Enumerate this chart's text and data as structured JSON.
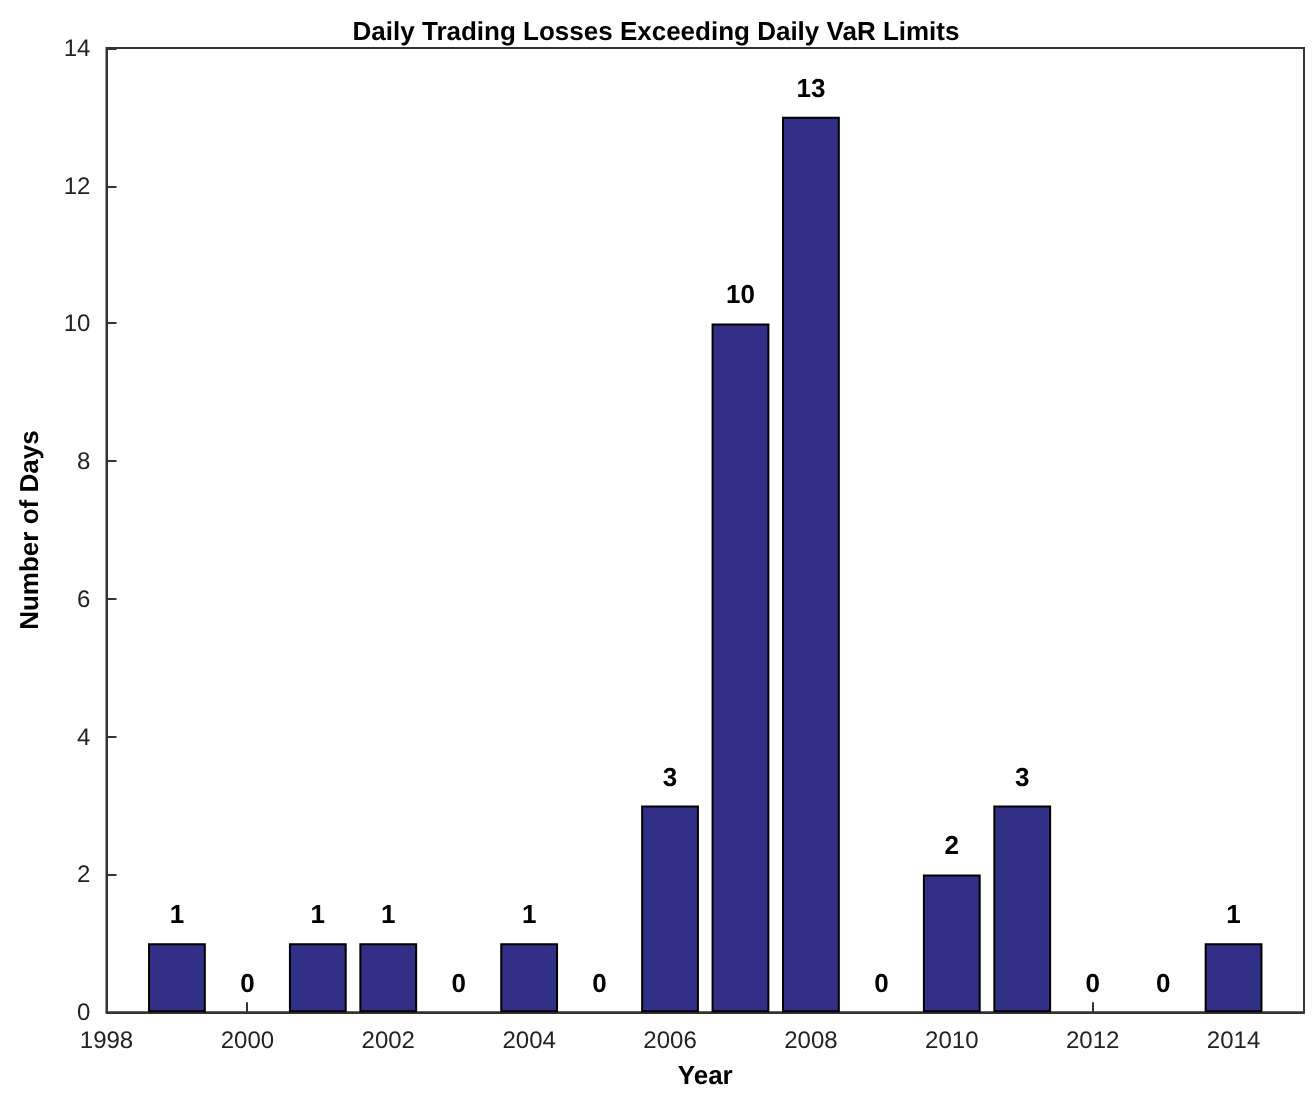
{
  "chart_data": {
    "type": "bar",
    "title": "Daily Trading Losses Exceeding Daily VaR Limits",
    "xlabel": "Year",
    "ylabel": "Number of Days",
    "x": [
      1999,
      2000,
      2001,
      2002,
      2003,
      2004,
      2005,
      2006,
      2007,
      2008,
      2009,
      2010,
      2011,
      2012,
      2013,
      2014
    ],
    "values": [
      1,
      0,
      1,
      1,
      0,
      1,
      0,
      3,
      10,
      13,
      0,
      2,
      3,
      0,
      0,
      1
    ],
    "color": "#322f86",
    "data_labels": true,
    "grid": false,
    "xlim": [
      1998,
      2015
    ],
    "xticks": [
      1998,
      2000,
      2002,
      2004,
      2006,
      2008,
      2010,
      2012,
      2014
    ],
    "ylim": [
      0,
      14
    ],
    "yticks": [
      0,
      2,
      4,
      6,
      8,
      10,
      12,
      14
    ]
  }
}
